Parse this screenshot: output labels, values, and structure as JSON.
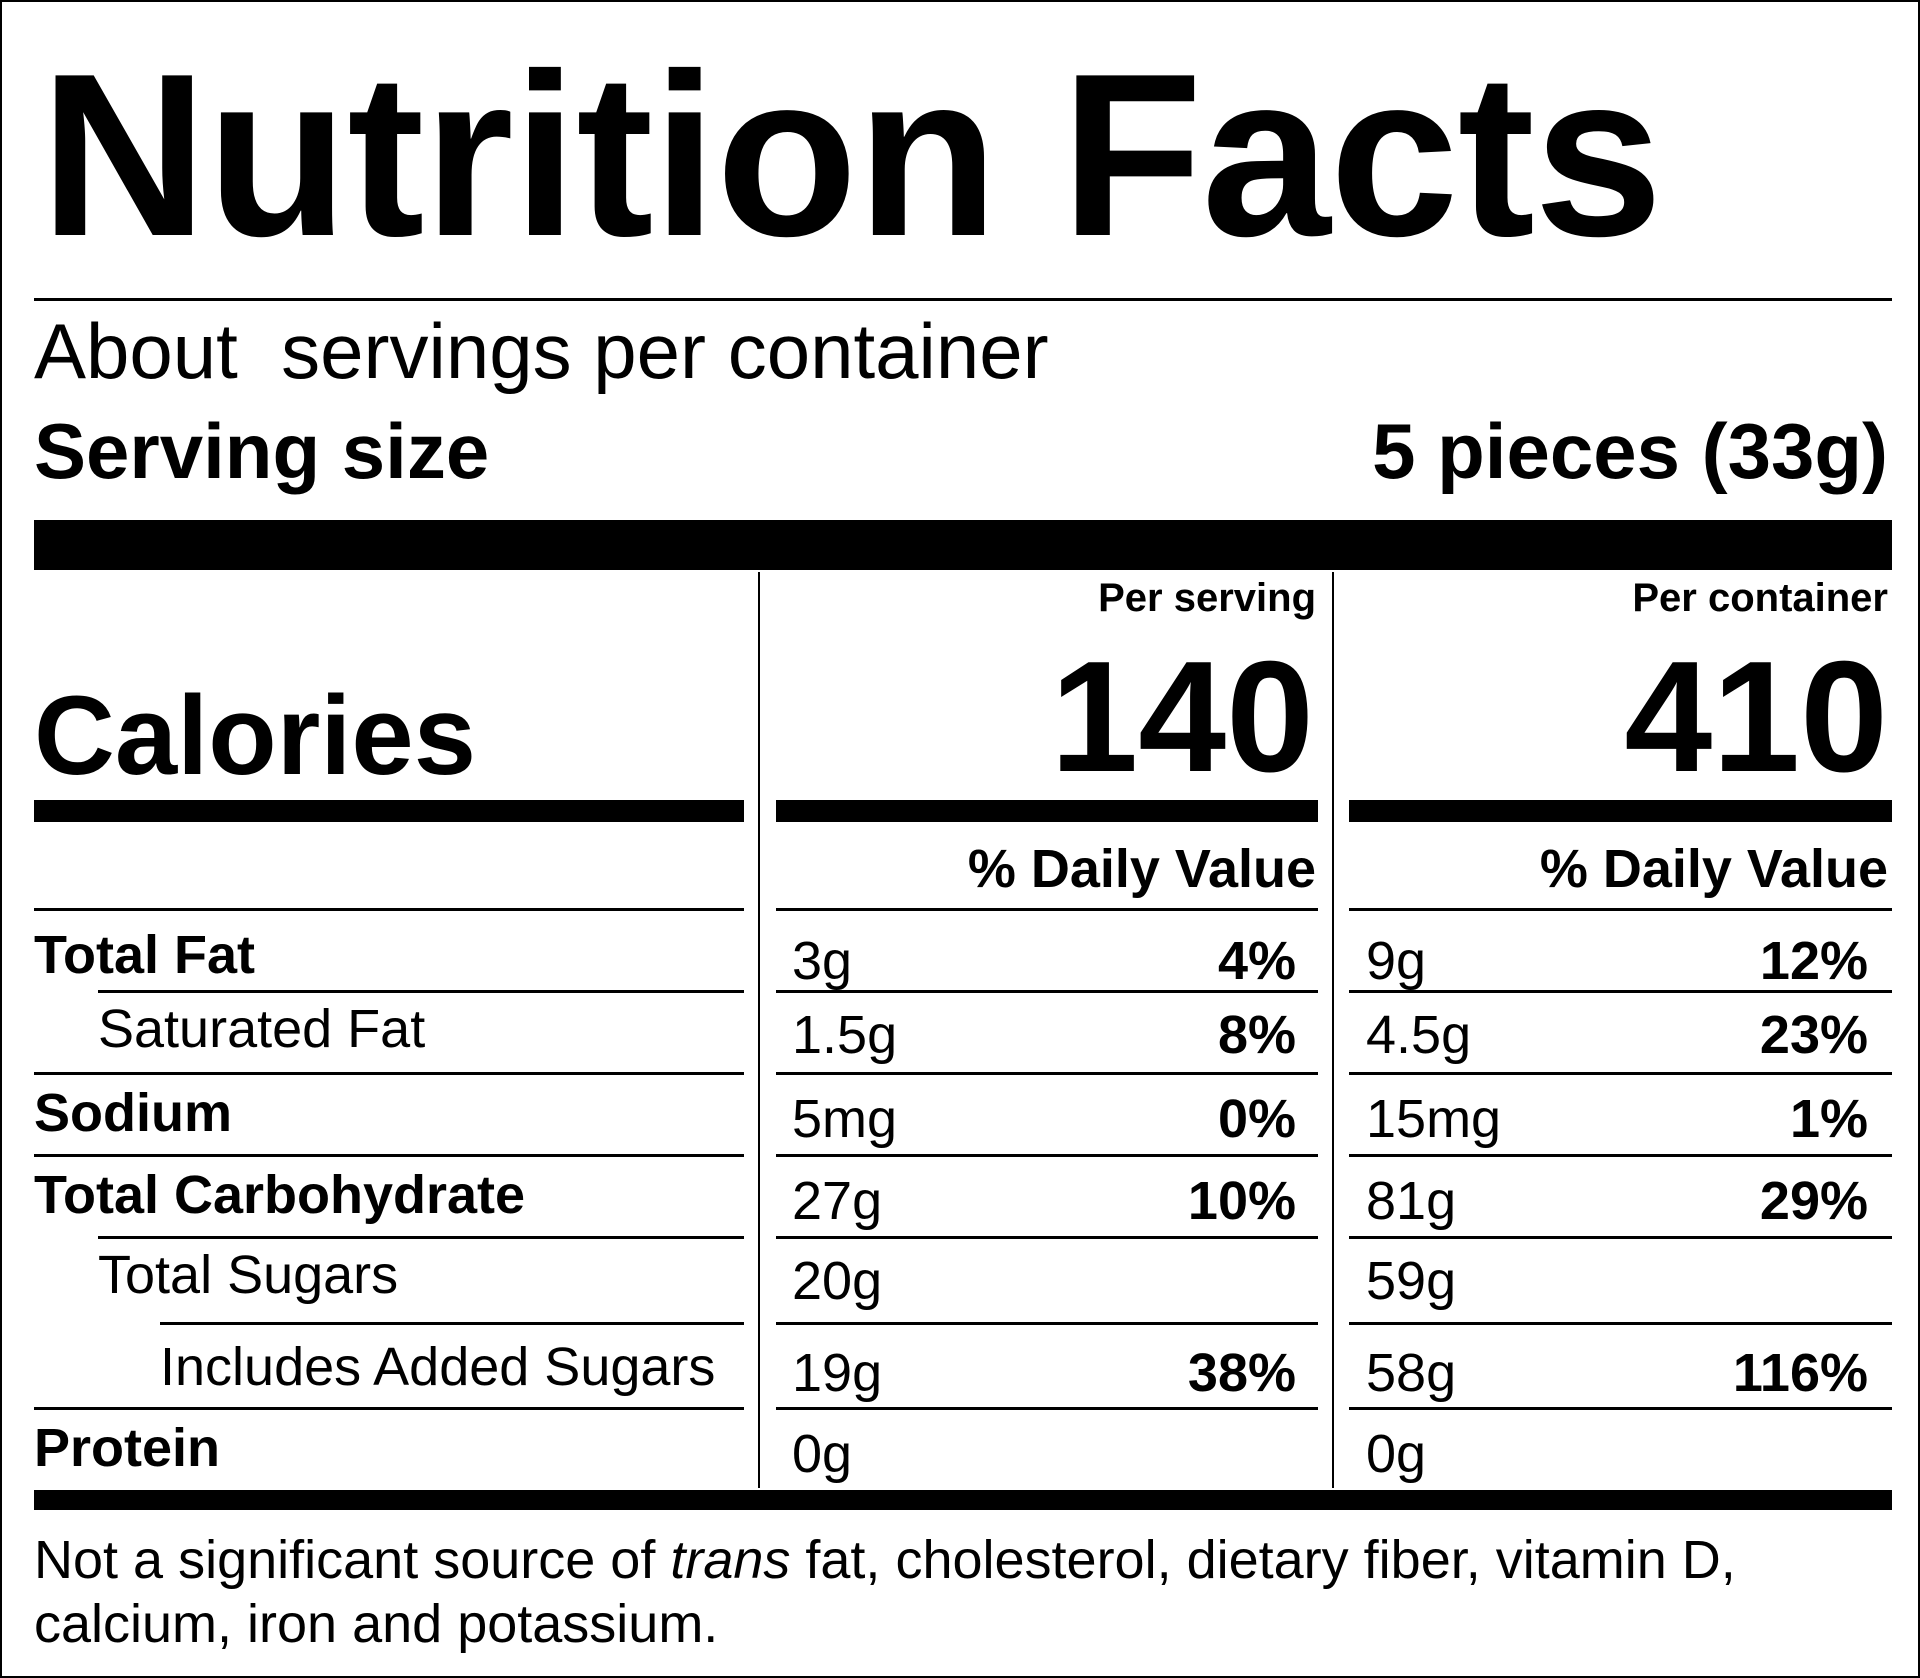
{
  "title": "Nutrition Facts",
  "servings": {
    "line": "About  servings per container"
  },
  "serving_size": {
    "label": "Serving size",
    "value": "5 pieces (33g)"
  },
  "columns": {
    "per_serving": "Per serving",
    "per_container": "Per container",
    "dv_heading": "% Daily Value"
  },
  "calories": {
    "label": "Calories",
    "per_serving": "140",
    "per_container": "410"
  },
  "nutrients": [
    {
      "name": "Total Fat",
      "bold": true,
      "indent": 0,
      "serving_amount": "3g",
      "serving_dv": "4%",
      "container_amount": "9g",
      "container_dv": "12%"
    },
    {
      "name": "Saturated Fat",
      "bold": false,
      "indent": 1,
      "serving_amount": "1.5g",
      "serving_dv": "8%",
      "container_amount": "4.5g",
      "container_dv": "23%"
    },
    {
      "name": "Sodium",
      "bold": true,
      "indent": 0,
      "serving_amount": "5mg",
      "serving_dv": "0%",
      "container_amount": "15mg",
      "container_dv": "1%"
    },
    {
      "name": "Total Carbohydrate",
      "bold": true,
      "indent": 0,
      "serving_amount": "27g",
      "serving_dv": "10%",
      "container_amount": "81g",
      "container_dv": "29%"
    },
    {
      "name": "Total Sugars",
      "bold": false,
      "indent": 1,
      "serving_amount": "20g",
      "serving_dv": "",
      "container_amount": "59g",
      "container_dv": ""
    },
    {
      "name": "Includes Added Sugars",
      "bold": false,
      "indent": 2,
      "serving_amount": "19g",
      "serving_dv": "38%",
      "container_amount": "58g",
      "container_dv": "116%"
    },
    {
      "name": "Protein",
      "bold": true,
      "indent": 0,
      "serving_amount": "0g",
      "serving_dv": "",
      "container_amount": "0g",
      "container_dv": ""
    }
  ],
  "footnote": {
    "before": "Not a significant source of ",
    "italic": "trans",
    "after": " fat, cholesterol, dietary fiber, vitamin D, calcium, iron and potassium."
  }
}
